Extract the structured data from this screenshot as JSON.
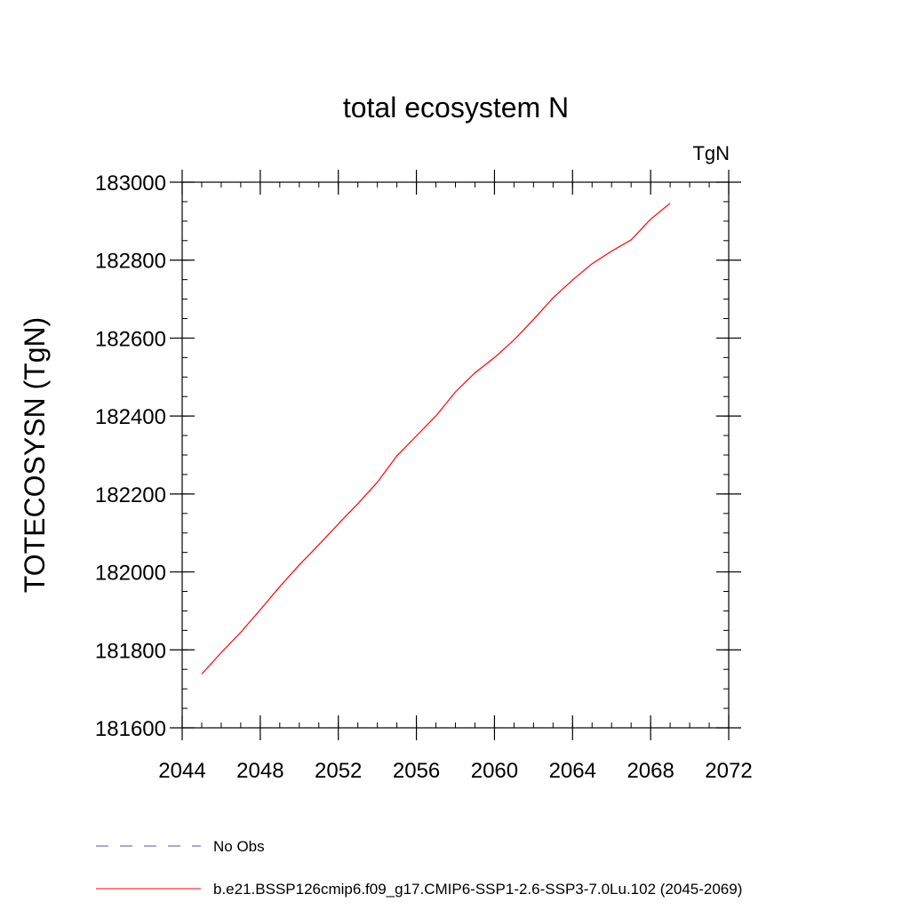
{
  "chart_data": {
    "type": "line",
    "title": "total ecosystem N",
    "units_label": "TgN",
    "ylabel": "TOTECOSYSN  (TgN)",
    "xlabel": "",
    "xlim": [
      2044,
      2072
    ],
    "ylim": [
      181600,
      183000
    ],
    "xticks": [
      2044,
      2048,
      2052,
      2056,
      2060,
      2064,
      2068,
      2072
    ],
    "yticks": [
      181600,
      181800,
      182000,
      182200,
      182400,
      182600,
      182800,
      183000
    ],
    "grid": false,
    "legend_position": "bottom",
    "series": [
      {
        "name": "b.e21.BSSP126cmip6.f09_g17.CMIP6-SSP1-2.6-SSP3-7.0Lu.102 (2045-2069)",
        "color": "#ff0000",
        "dash": "solid",
        "x": [
          2045,
          2046,
          2047,
          2048,
          2049,
          2050,
          2051,
          2052,
          2053,
          2054,
          2055,
          2056,
          2057,
          2058,
          2059,
          2060,
          2061,
          2062,
          2063,
          2064,
          2065,
          2066,
          2067,
          2068,
          2069
        ],
        "y": [
          181738,
          181793,
          181845,
          181903,
          181962,
          182018,
          182070,
          182123,
          182175,
          182230,
          182298,
          182349,
          182400,
          182462,
          182511,
          182550,
          182595,
          182648,
          182703,
          182749,
          182791,
          182823,
          182852,
          182905,
          182946
        ]
      }
    ],
    "legend": [
      {
        "label": "No Obs",
        "color": "#5b4fa8",
        "dash": "dashed"
      },
      {
        "label": "b.e21.BSSP126cmip6.f09_g17.CMIP6-SSP1-2.6-SSP3-7.0Lu.102 (2045-2069)",
        "color": "#ff0000",
        "dash": "solid"
      }
    ]
  }
}
